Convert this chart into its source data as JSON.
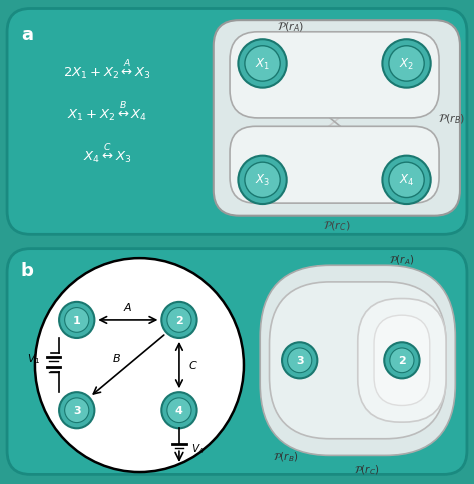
{
  "bg_teal_dark": "#1a8a82",
  "bg_teal_light": "#4db8b0",
  "bg_panel": "#2a9d94",
  "teal_node": "#3a9d96",
  "teal_node_border": "#1a7a75",
  "white_panel": "#f0f5f5",
  "gray_border": "#aaaaaa",
  "light_gray_shape": "#e8eeee",
  "label_a": "a",
  "label_b": "b",
  "eq1": "$2X_1 + X_2 \\overset{A}{\\leftrightarrow} X_3$",
  "eq2": "$X_1 + X_2 \\overset{B}{\\leftrightarrow} X_4$",
  "eq3": "$X_4 \\overset{C}{\\leftrightarrow} X_3$",
  "pra": "$\\mathcal{P}(r_A)$",
  "prb": "$\\mathcal{P}(r_B)$",
  "prc": "$\\mathcal{P}(r_C)$"
}
